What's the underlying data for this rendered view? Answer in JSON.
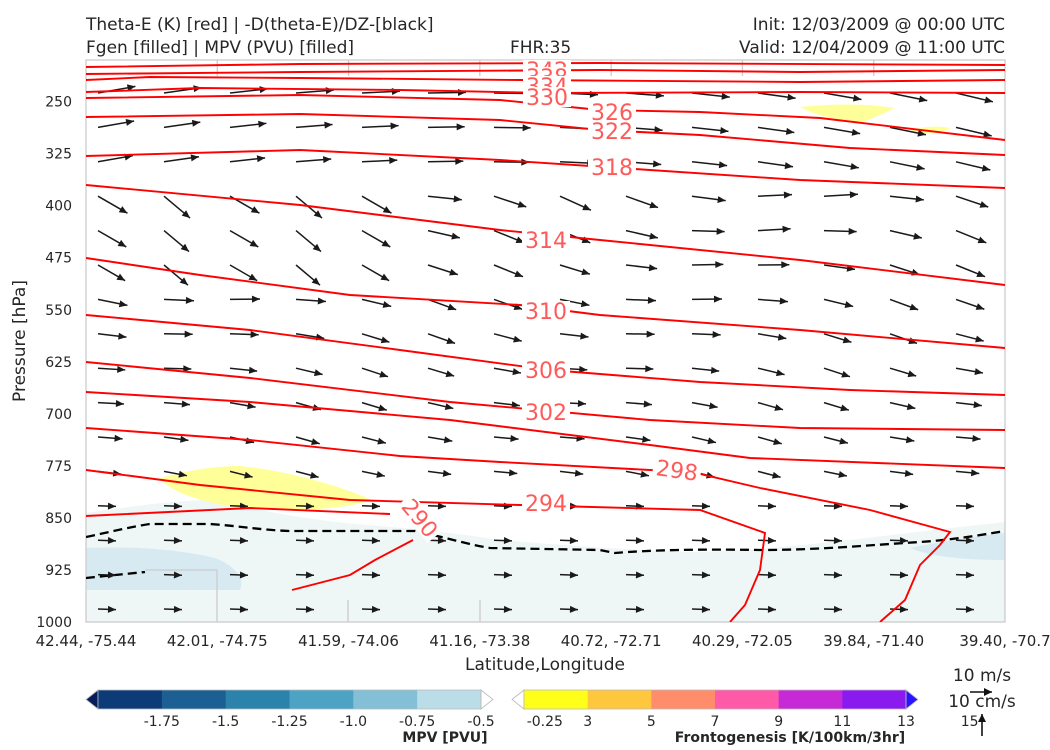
{
  "header": {
    "title_left_1": "Theta-E (K) [red] | -D(theta-E)/DZ-[black]",
    "title_left_2": "Fgen [filled] | MPV (PVU) [filled]",
    "title_center": "FHR:35",
    "title_right_1": "Init: 12/03/2009 @ 00:00 UTC",
    "title_right_2": "Valid: 12/04/2009 @ 11:00 UTC"
  },
  "colors": {
    "theta_e": "#ff0000",
    "theta_e_label": "#ff5a5a",
    "stability": "#000000",
    "fgen_low": "#ffff99",
    "mpv_light": "#eef6f6",
    "mpv_blue": "#d7eaf1"
  },
  "chart_data": {
    "type": "contour cross-section",
    "xlabel": "Latitude,Longitude",
    "ylabel": "Pressure [hPa]",
    "x_tick_labels": [
      "42.44, -75.44",
      "42.01, -74.75",
      "41.59, -74.06",
      "41.16, -73.38",
      "40.72, -72.71",
      "40.29, -72.05",
      "39.84, -71.40",
      "39.40, -70.7"
    ],
    "y_ticks": [
      250,
      325,
      400,
      475,
      550,
      625,
      700,
      775,
      850,
      925,
      1000
    ],
    "ylim": [
      1000,
      190
    ],
    "y_scale": "linear (inverted)",
    "theta_e_contour_labels": [
      "342",
      "338",
      "334",
      "330",
      "326",
      "322",
      "318",
      "314",
      "310",
      "306",
      "302",
      "298",
      "294",
      "290"
    ],
    "wind_reference": {
      "u_label": "10 m/s",
      "w_label": "10 cm/s"
    },
    "colorbars": [
      {
        "label": "MPV [PVU]",
        "tick_labels": [
          "-1.75",
          "-1.5",
          "-1.25",
          "-1.0",
          "-0.75",
          "-0.5",
          "-0.25"
        ],
        "colors": [
          "#051d5c",
          "#0d3b78",
          "#1b5f93",
          "#2b82aa",
          "#4ea3c4",
          "#83bfd6",
          "#bbdde8",
          "#ffffff"
        ]
      },
      {
        "label": "Frontogenesis [K/100km/3hr]",
        "tick_labels": [
          "3",
          "5",
          "7",
          "9",
          "11",
          "13",
          "15"
        ],
        "colors": [
          "#ffffff",
          "#ffff1a",
          "#ffc73d",
          "#ff8c6b",
          "#ff5aa8",
          "#c62ad6",
          "#8a1aee",
          "#2a14ff"
        ]
      }
    ]
  }
}
